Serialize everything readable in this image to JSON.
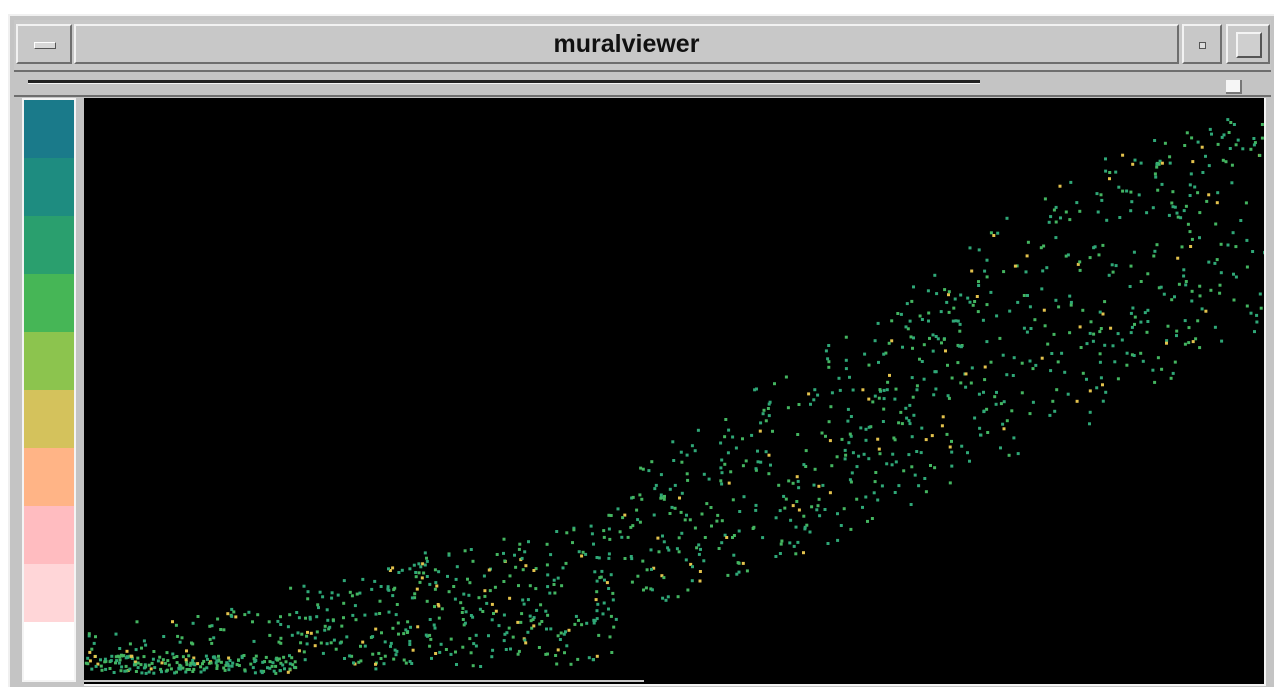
{
  "window": {
    "title": "muralviewer",
    "icons": {
      "menu": "window-menu-icon",
      "minimize": "minimize-icon",
      "maximize": "maximize-icon"
    }
  },
  "legend": {
    "colors": [
      "#1a7a8a",
      "#1e8c80",
      "#2a9f6e",
      "#46b656",
      "#8cc44e",
      "#d4c25c",
      "#ffb486",
      "#ffbcc0",
      "#ffd6d8",
      "#ffffff"
    ]
  },
  "chart_data": {
    "type": "scatter",
    "note_colors": {
      "low": "#2fa777",
      "mid": "#44b560",
      "high": "#e3c24d"
    }
  }
}
